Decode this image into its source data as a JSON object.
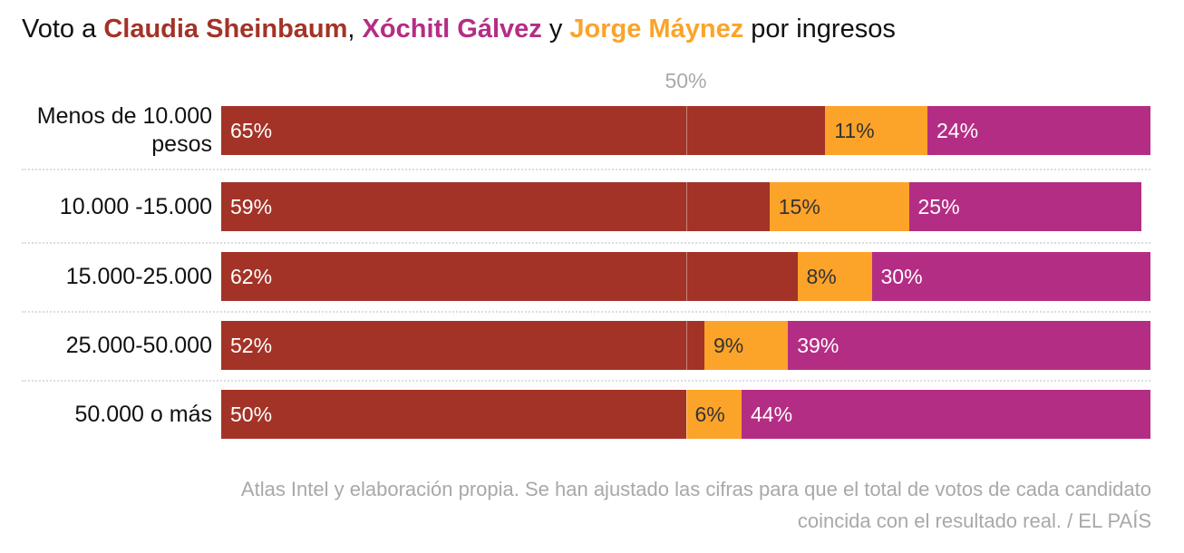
{
  "chart_data": {
    "type": "stacked-bar-horizontal",
    "title": [
      "Voto a ",
      ", ",
      " y ",
      " por ingresos"
    ],
    "categories": [
      "Menos de 10.000 pesos",
      "10.000 -15.000",
      "15.000-25.000",
      "25.000-50.000",
      "50.000 o más"
    ],
    "series": [
      {
        "name": "Claudia Sheinbaum",
        "color": "#a33327",
        "values": [
          65,
          59,
          62,
          52,
          50
        ],
        "value_labels": [
          "65%",
          "59%",
          "62%",
          "52%",
          "50%"
        ]
      },
      {
        "name": "Jorge Máynez",
        "color": "#fca32a",
        "values": [
          11,
          15,
          8,
          9,
          6
        ],
        "value_labels": [
          "11%",
          "15%",
          "8%",
          "9%",
          "6%"
        ]
      },
      {
        "name": "Xóchitl Gálvez",
        "color": "#b42d84",
        "values": [
          24,
          25,
          30,
          39,
          44
        ],
        "value_labels": [
          "24%",
          "25%",
          "30%",
          "39%",
          "44%"
        ]
      }
    ],
    "xlim": [
      0,
      100
    ],
    "reference": {
      "value": 50,
      "label": "50%"
    },
    "footer": [
      "Atlas Intel y elaboración propia. Se han ajustado las cifras para que el total de votos de cada candidato",
      "coincida con el resultado real. / EL PAÍS"
    ]
  }
}
